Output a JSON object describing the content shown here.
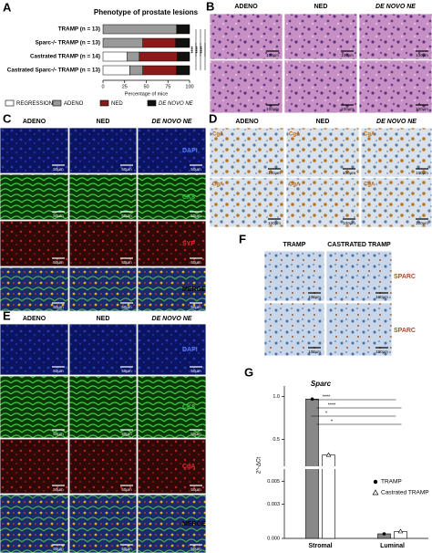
{
  "panels": {
    "A": {
      "label": "A"
    },
    "B": {
      "label": "B",
      "columns": [
        "ADENO",
        "NED",
        "DE NOVO NE"
      ],
      "scale_bar": "100µm"
    },
    "C": {
      "label": "C",
      "columns": [
        "ADENO",
        "NED",
        "DE NOVO NE"
      ],
      "rows": [
        "DAPI",
        "CK8",
        "SYP",
        "MERGE"
      ],
      "scale_bar": "50µm"
    },
    "D": {
      "label": "D",
      "columns": [
        "ADENO",
        "NED",
        "DE NOVO NE"
      ],
      "stain": "CgA",
      "scale_bar": "100µm"
    },
    "E": {
      "label": "E",
      "columns": [
        "ADENO",
        "NED",
        "DE NOVO NE"
      ],
      "rows": [
        "DAPI",
        "CK8",
        "CgA",
        "MERGE"
      ],
      "scale_bar": "50µm"
    },
    "F": {
      "label": "F",
      "columns": [
        "TRAMP",
        "CASTRATED TRAMP"
      ],
      "stain": "SPARC",
      "scale_bar": "100µm"
    },
    "G": {
      "label": "G"
    }
  },
  "chart_data": [
    {
      "type": "bar",
      "orientation": "horizontal",
      "stacked": true,
      "title": "Phenotype of prostate lesions",
      "x_label": "Percentage of mice",
      "categories": [
        "TRAMP (n = 13)",
        "Sparc-/- TRAMP (n = 13)",
        "Castrated TRAMP (n = 14)",
        "Castrated Sparc-/- TRAMP (n = 13)"
      ],
      "series": [
        {
          "name": "REGRESSION",
          "color": "#ffffff",
          "values": [
            0,
            0,
            28,
            31
          ]
        },
        {
          "name": "ADENO",
          "color": "#9a9a9a",
          "values": [
            85,
            46,
            14,
            15
          ]
        },
        {
          "name": "NED",
          "color": "#8b1a1a",
          "values": [
            0,
            38,
            44,
            39
          ]
        },
        {
          "name": "DE NOVO NE",
          "color": "#111111",
          "values": [
            15,
            16,
            14,
            15
          ]
        }
      ],
      "xlim": [
        0,
        100
      ],
      "xticks": [
        0,
        25,
        50,
        75,
        100
      ],
      "annotations": [
        "****",
        "****",
        "****",
        "****",
        "****",
        "****"
      ]
    },
    {
      "type": "bar",
      "title": "Sparc",
      "y_label": "2^-ΔCt",
      "categories": [
        "Stromal",
        "Luminal"
      ],
      "series": [
        {
          "name": "TRAMP",
          "color": "#888888",
          "marker": "circle",
          "values": [
            0.97,
            0.0004
          ]
        },
        {
          "name": "Castrated TRAMP",
          "color": "#ffffff",
          "marker": "triangle",
          "values": [
            0.32,
            0.0006
          ]
        }
      ],
      "ylim": [
        0,
        1.1
      ],
      "ybreak": [
        0.006,
        0.2
      ],
      "yticks": [
        {
          "value": 0,
          "label": "0.000"
        },
        0.003,
        0.005,
        0.5,
        {
          "value": 1,
          "label": "1.0"
        }
      ],
      "annotations": [
        "****",
        "****",
        "*",
        "*"
      ]
    }
  ]
}
